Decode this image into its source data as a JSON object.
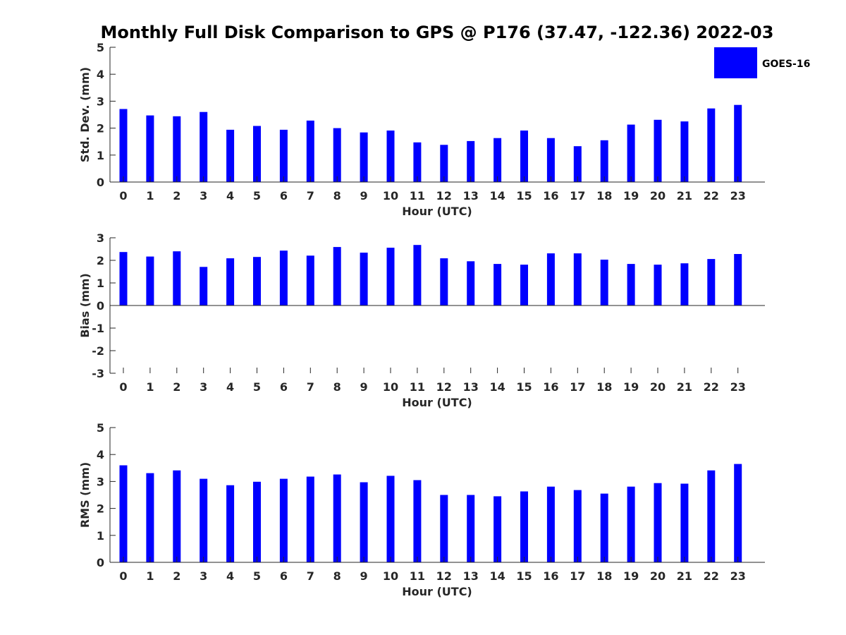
{
  "chart_data": [
    {
      "type": "bar",
      "title": "Monthly Full Disk Comparison to GPS @ P176 (37.47, -122.36) 2022-03",
      "xlabel": "Hour (UTC)",
      "ylabel": "Std. Dev. (mm)",
      "ylim": [
        0,
        5
      ],
      "yticks": [
        "0",
        "1",
        "2",
        "3",
        "4",
        "5"
      ],
      "categories": [
        "0",
        "1",
        "2",
        "3",
        "4",
        "5",
        "6",
        "7",
        "8",
        "9",
        "10",
        "11",
        "12",
        "13",
        "14",
        "15",
        "16",
        "17",
        "18",
        "19",
        "20",
        "21",
        "22",
        "23"
      ],
      "series": [
        {
          "name": "GOES-16",
          "color": "#0000ff",
          "values": [
            2.71,
            2.47,
            2.44,
            2.6,
            1.94,
            2.08,
            1.94,
            2.28,
            2.0,
            1.84,
            1.91,
            1.47,
            1.38,
            1.52,
            1.63,
            1.91,
            1.63,
            1.33,
            1.55,
            2.13,
            2.31,
            2.25,
            2.73,
            2.86
          ]
        }
      ],
      "legend": {
        "position": "top-right",
        "entries": [
          "GOES-16"
        ]
      }
    },
    {
      "type": "bar",
      "xlabel": "Hour (UTC)",
      "ylabel": "Bias (mm)",
      "ylim": [
        -3,
        3
      ],
      "yticks": [
        "-3",
        "-2",
        "-1",
        "0",
        "1",
        "2",
        "3"
      ],
      "categories": [
        "0",
        "1",
        "2",
        "3",
        "4",
        "5",
        "6",
        "7",
        "8",
        "9",
        "10",
        "11",
        "12",
        "13",
        "14",
        "15",
        "16",
        "17",
        "18",
        "19",
        "20",
        "21",
        "22",
        "23"
      ],
      "series": [
        {
          "name": "GOES-16",
          "color": "#0000ff",
          "values": [
            2.37,
            2.17,
            2.4,
            1.71,
            2.09,
            2.15,
            2.43,
            2.21,
            2.59,
            2.34,
            2.56,
            2.68,
            2.09,
            1.96,
            1.84,
            1.81,
            2.31,
            2.31,
            2.03,
            1.84,
            1.81,
            1.87,
            2.06,
            2.28
          ]
        }
      ]
    },
    {
      "type": "bar",
      "xlabel": "Hour (UTC)",
      "ylabel": "RMS (mm)",
      "ylim": [
        0,
        5
      ],
      "yticks": [
        "0",
        "1",
        "2",
        "3",
        "4",
        "5"
      ],
      "categories": [
        "0",
        "1",
        "2",
        "3",
        "4",
        "5",
        "6",
        "7",
        "8",
        "9",
        "10",
        "11",
        "12",
        "13",
        "14",
        "15",
        "16",
        "17",
        "18",
        "19",
        "20",
        "21",
        "22",
        "23"
      ],
      "series": [
        {
          "name": "GOES-16",
          "color": "#0000ff",
          "values": [
            3.6,
            3.31,
            3.41,
            3.1,
            2.86,
            2.99,
            3.1,
            3.18,
            3.26,
            2.97,
            3.21,
            3.05,
            2.5,
            2.5,
            2.45,
            2.63,
            2.81,
            2.68,
            2.55,
            2.81,
            2.94,
            2.92,
            3.41,
            3.65
          ]
        }
      ]
    }
  ]
}
